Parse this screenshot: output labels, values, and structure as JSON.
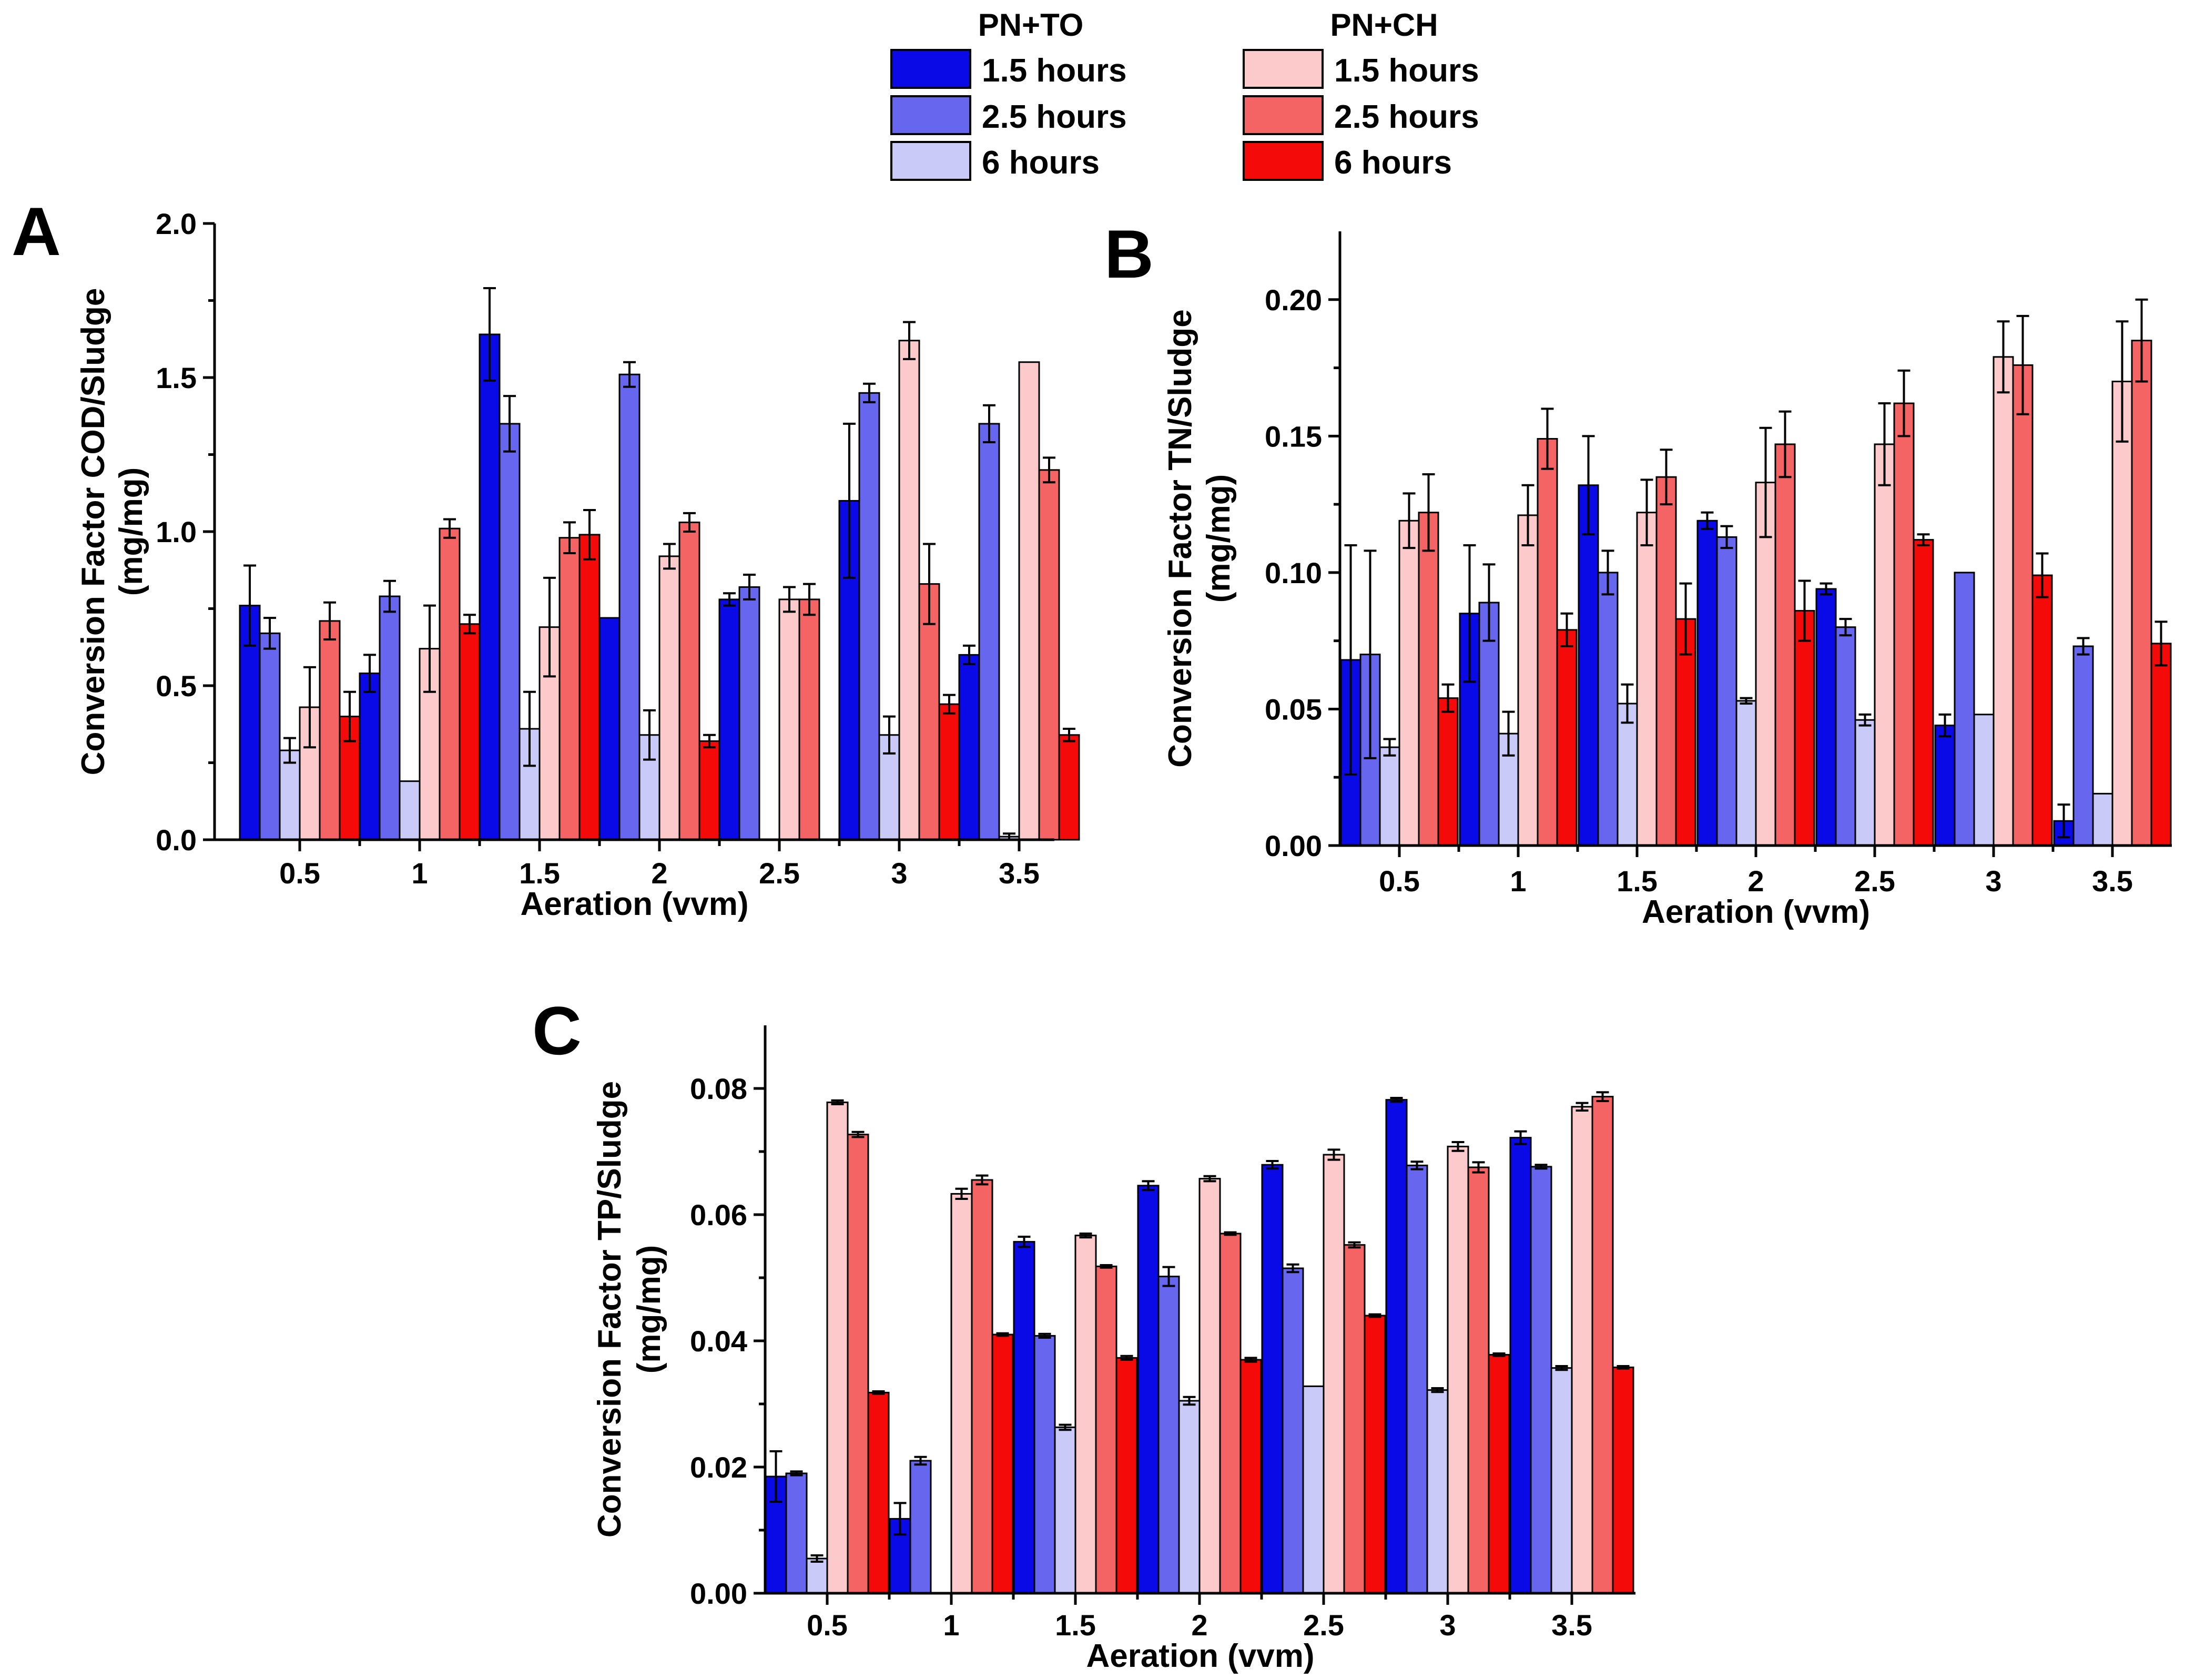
{
  "legend": {
    "groups": [
      {
        "title": "PN+TO",
        "entries": [
          "1.5 hours",
          "2.5 hours",
          "6 hours"
        ]
      },
      {
        "title": "PN+CH",
        "entries": [
          "1.5 hours",
          "2.5 hours",
          "6 hours"
        ]
      }
    ]
  },
  "colors": {
    "to_1_5": "#0a0ae6",
    "to_2_5": "#6666ee",
    "to_6": "#cacaf8",
    "ch_1_5": "#fccaca",
    "ch_2_5": "#f56464",
    "ch_6": "#f50a0a"
  },
  "chart_data": [
    {
      "type": "bar",
      "panel": "A",
      "title": "",
      "ylabel": [
        "Conversion Factor COD/Sludge",
        "(mg/mg)"
      ],
      "xlabel": "Aeration (vvm)",
      "categories": [
        "0.5",
        "1",
        "1.5",
        "2",
        "2.5",
        "3",
        "3.5"
      ],
      "ylim": [
        0,
        2.0
      ],
      "yticks": [
        "0.0",
        "0.5",
        "1.0",
        "1.5",
        "2.0"
      ],
      "series": [
        {
          "name": "PN+TO 1.5 hours",
          "values": [
            0.76,
            0.54,
            1.64,
            0.72,
            0.78,
            1.1,
            0.6
          ],
          "errors": [
            0.13,
            0.06,
            0.15,
            0.0,
            0.02,
            0.25,
            0.03
          ]
        },
        {
          "name": "PN+TO 2.5 hours",
          "values": [
            0.67,
            0.79,
            1.35,
            1.51,
            0.82,
            1.45,
            1.35
          ],
          "errors": [
            0.05,
            0.05,
            0.09,
            0.04,
            0.04,
            0.03,
            0.06
          ]
        },
        {
          "name": "PN+TO 6 hours",
          "values": [
            0.29,
            0.19,
            0.36,
            0.34,
            0.0,
            0.34,
            0.01
          ],
          "errors": [
            0.04,
            0.0,
            0.12,
            0.08,
            0.0,
            0.06,
            0.01
          ]
        },
        {
          "name": "PN+CH 1.5 hours",
          "values": [
            0.43,
            0.62,
            0.69,
            0.92,
            0.78,
            1.62,
            1.55
          ],
          "errors": [
            0.13,
            0.14,
            0.16,
            0.04,
            0.04,
            0.06,
            0.0
          ]
        },
        {
          "name": "PN+CH 2.5 hours",
          "values": [
            0.71,
            1.01,
            0.98,
            1.03,
            0.78,
            0.83,
            1.2
          ],
          "errors": [
            0.06,
            0.03,
            0.05,
            0.03,
            0.05,
            0.13,
            0.04
          ]
        },
        {
          "name": "PN+CH 6 hours",
          "values": [
            0.4,
            0.7,
            0.99,
            0.32,
            0.0,
            0.44,
            0.34
          ],
          "errors": [
            0.08,
            0.03,
            0.08,
            0.02,
            0.0,
            0.03,
            0.02
          ]
        }
      ]
    },
    {
      "type": "bar",
      "panel": "B",
      "title": "",
      "ylabel": [
        "Conversion Factor TN/Sludge",
        "(mg/mg)"
      ],
      "xlabel": "Aeration (vvm)",
      "categories": [
        "0.5",
        "1",
        "1.5",
        "2",
        "2.5",
        "3",
        "3.5"
      ],
      "ylim": [
        0,
        0.225
      ],
      "yticks": [
        "0.00",
        "0.05",
        "0.10",
        "0.15",
        "0.20"
      ],
      "series": [
        {
          "name": "PN+TO 1.5 hours",
          "values": [
            0.068,
            0.085,
            0.132,
            0.119,
            0.094,
            0.044,
            0.009
          ],
          "errors": [
            0.042,
            0.025,
            0.018,
            0.003,
            0.002,
            0.004,
            0.006
          ]
        },
        {
          "name": "PN+TO 2.5 hours",
          "values": [
            0.07,
            0.089,
            0.1,
            0.113,
            0.08,
            0.1,
            0.073
          ],
          "errors": [
            0.038,
            0.014,
            0.008,
            0.004,
            0.003,
            0.0,
            0.003
          ]
        },
        {
          "name": "PN+TO 6 hours",
          "values": [
            0.036,
            0.041,
            0.052,
            0.053,
            0.046,
            0.048,
            0.019
          ],
          "errors": [
            0.003,
            0.008,
            0.007,
            0.001,
            0.002,
            0.0,
            0.0
          ]
        },
        {
          "name": "PN+CH 1.5 hours",
          "values": [
            0.119,
            0.121,
            0.122,
            0.133,
            0.147,
            0.179,
            0.17
          ],
          "errors": [
            0.01,
            0.011,
            0.012,
            0.02,
            0.015,
            0.013,
            0.022
          ]
        },
        {
          "name": "PN+CH 2.5 hours",
          "values": [
            0.122,
            0.149,
            0.135,
            0.147,
            0.162,
            0.176,
            0.185
          ],
          "errors": [
            0.014,
            0.011,
            0.01,
            0.012,
            0.012,
            0.018,
            0.015
          ]
        },
        {
          "name": "PN+CH 6 hours",
          "values": [
            0.054,
            0.079,
            0.083,
            0.086,
            0.112,
            0.099,
            0.074
          ],
          "errors": [
            0.005,
            0.006,
            0.013,
            0.011,
            0.002,
            0.008,
            0.008
          ]
        }
      ]
    },
    {
      "type": "bar",
      "panel": "C",
      "title": "",
      "ylabel": [
        "Conversion Factor TP/Sludge",
        "(mg/mg)"
      ],
      "xlabel": "Aeration (vvm)",
      "categories": [
        "0.5",
        "1",
        "1.5",
        "2",
        "2.5",
        "3",
        "3.5"
      ],
      "ylim": [
        0,
        0.09
      ],
      "yticks": [
        "0.00",
        "0.02",
        "0.04",
        "0.06",
        "0.08"
      ],
      "series": [
        {
          "name": "PN+TO 1.5 hours",
          "values": [
            0.0185,
            0.0118,
            0.0557,
            0.0646,
            0.0679,
            0.0782,
            0.0722
          ],
          "errors": [
            0.004,
            0.0025,
            0.0008,
            0.0007,
            0.0006,
            0.0003,
            0.001
          ]
        },
        {
          "name": "PN+TO 2.5 hours",
          "values": [
            0.019,
            0.021,
            0.0408,
            0.0502,
            0.0515,
            0.0678,
            0.0676
          ],
          "errors": [
            0.0003,
            0.0006,
            0.0003,
            0.0015,
            0.0006,
            0.0006,
            0.0003
          ]
        },
        {
          "name": "PN+TO 6 hours",
          "values": [
            0.0055,
            0.0,
            0.0263,
            0.0305,
            0.0328,
            0.0322,
            0.0357
          ],
          "errors": [
            0.0005,
            0.0,
            0.0004,
            0.0006,
            0.0,
            0.0003,
            0.0003
          ]
        },
        {
          "name": "PN+CH 1.5 hours",
          "values": [
            0.0778,
            0.0633,
            0.0567,
            0.0657,
            0.0695,
            0.0708,
            0.0771
          ],
          "errors": [
            0.0003,
            0.0008,
            0.0003,
            0.0004,
            0.0008,
            0.0007,
            0.0006
          ]
        },
        {
          "name": "PN+CH 2.5 hours",
          "values": [
            0.0727,
            0.0655,
            0.0518,
            0.057,
            0.0552,
            0.0675,
            0.0787
          ],
          "errors": [
            0.0004,
            0.0007,
            0.0002,
            0.0002,
            0.0004,
            0.0008,
            0.0007
          ]
        },
        {
          "name": "PN+CH 6 hours",
          "values": [
            0.0318,
            0.041,
            0.0373,
            0.037,
            0.044,
            0.0378,
            0.0358
          ],
          "errors": [
            0.0002,
            0.0002,
            0.0003,
            0.0003,
            0.0002,
            0.0002,
            0.0002
          ]
        }
      ]
    }
  ]
}
